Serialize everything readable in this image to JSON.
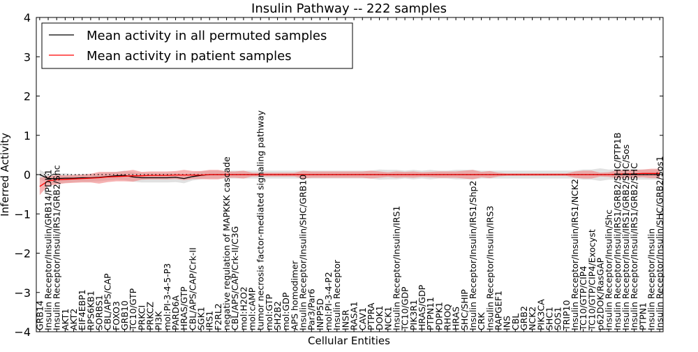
{
  "chart_data": {
    "type": "line",
    "title": "Insulin Pathway -- 222 samples",
    "xlabel": "Cellular Entities",
    "ylabel": "Inferred Activity",
    "ylim": [
      -4,
      4
    ],
    "yticks": [
      -4,
      -3,
      -2,
      -1,
      0,
      1,
      2,
      3,
      4
    ],
    "grid": false,
    "legend_position": "top-left",
    "categories": [
      "GRB14",
      "Insulin Receptor/Insulin/GRB14/PDK1",
      "Insulin Receptor/Insuli/IRS1/GRB2/Shc",
      "AKT1",
      "AKT2",
      "EIF4EBP1",
      "RPS6KB1",
      "SORBS1",
      "CBL/APS/CAP",
      "FOXO3",
      "GRB10",
      "TC10/GTP",
      "PRKCI",
      "PRKCZ",
      "PI3K",
      "mol:PI-3-4-5-P3",
      "PARD6A",
      "HRAS/GTP",
      "CBL/APS/CAP/Crk-II",
      "SGK1",
      "IRS1",
      "F2RL2",
      "negative regulation of MAPKKK cascade",
      "CBL/APS/CAP/Crk-II/C3G",
      "mol:H2O2",
      "mol:cAMP",
      "tumor necrosis factor-mediated signaling pathway",
      "mol:GTP",
      "SH2B2",
      "mol:GDP",
      "APS homodimer",
      "Insulin Receptor/Insulin/SHC/GRB10",
      "Par3/Par6",
      "INPP5D",
      "mol:PI-3-4-P2",
      "Insulin Receptor",
      "INSR",
      "RASA1",
      "CAV1",
      "PTPRA",
      "DOK1",
      "NCK1",
      "Insulin Receptor/Insulin/IRS1",
      "TC10/GDP",
      "PIK3R1",
      "HRAS/GDP",
      "PTPN11",
      "PDPK1",
      "RHOQ",
      "HRAS",
      "SHC/SHIP",
      "Insulin Receptor/Insulin/IRS1/Shp2",
      "CRK",
      "Insulin Receptor/Insulin/IRS3",
      "RAPGEF1",
      "INS",
      "CBL",
      "GRB2",
      "NCK2",
      "PIK3CA",
      "SHC1",
      "SOS1",
      "TRIP10",
      "Insulin Receptor/Insulin/IRS1/NCK2",
      "TC10/GTP/CIP4",
      "TC10/GTP/CIP4/Exocyst",
      "p62DOK/RasGAP",
      "Insulin Receptor/Insulin/Shc",
      "Insulin Receptor/Insuli/IRS1/GRB2/SHC/PTP1B",
      "Insulin Receptor/Insuli/IRS1/GRB2/SHC/Sos",
      "Insulin Receptor/Insuli/IRS1/GRB2/SHC",
      "PTPN1",
      "Insulin Receptor/Insulin",
      "Insulin Receptor/Insulin/SHC/GRB2/Sos1"
    ],
    "series": [
      {
        "name": "Mean activity in all permuted samples",
        "color": "#000000",
        "band_color": "#c8c8c8",
        "values": [
          0,
          -0.1,
          -0.1,
          -0.09,
          -0.09,
          -0.08,
          -0.08,
          -0.07,
          -0.05,
          -0.03,
          -0.02,
          -0.06,
          -0.08,
          -0.08,
          -0.08,
          -0.08,
          -0.07,
          -0.1,
          -0.05,
          -0.02,
          0,
          0,
          0,
          0,
          0,
          0,
          0,
          0,
          0,
          0,
          0,
          0,
          0,
          0,
          0,
          0,
          0,
          0,
          0,
          0,
          0,
          0,
          0,
          0,
          0,
          0,
          0,
          0,
          0,
          0,
          0,
          0,
          0,
          0,
          0,
          0,
          0,
          0,
          0,
          0,
          0,
          0,
          0,
          0,
          0,
          0,
          0,
          0,
          0,
          0,
          0,
          0,
          0,
          0
        ],
        "spread": [
          0.12,
          0.12,
          0.12,
          0.12,
          0.1,
          0.1,
          0.1,
          0.1,
          0.1,
          0.1,
          0.12,
          0.12,
          0.12,
          0.12,
          0.12,
          0.12,
          0.12,
          0.12,
          0.1,
          0.1,
          0.1,
          0.1,
          0.1,
          0.1,
          0.1,
          0.1,
          0.1,
          0.1,
          0.1,
          0.1,
          0.1,
          0.1,
          0.1,
          0.1,
          0.1,
          0.1,
          0.1,
          0.1,
          0.1,
          0.1,
          0.13,
          0.12,
          0.12,
          0.1,
          0.12,
          0.1,
          0.12,
          0.1,
          0.1,
          0.12,
          0.12,
          0.12,
          0.1,
          0.1,
          0.1,
          0.1,
          0.1,
          0.1,
          0.1,
          0.1,
          0.1,
          0.1,
          0.1,
          0.1,
          0.13,
          0.13,
          0.16,
          0.13,
          0.13,
          0.13,
          0.13,
          0.13,
          0.13,
          0.13
        ]
      },
      {
        "name": "Mean activity in patient samples",
        "color": "#ff0000",
        "band_color": "#f08080",
        "values": [
          -0.3,
          -0.16,
          -0.13,
          -0.12,
          -0.11,
          -0.1,
          -0.09,
          -0.08,
          -0.06,
          -0.05,
          -0.04,
          -0.03,
          -0.03,
          -0.02,
          -0.02,
          -0.02,
          -0.01,
          -0.01,
          -0.01,
          -0.01,
          0,
          0,
          0,
          0,
          0,
          0,
          0,
          0,
          0,
          0,
          0,
          0,
          0,
          0,
          0,
          0,
          0,
          0,
          0,
          0,
          0,
          0,
          0,
          0,
          0,
          0,
          0,
          0,
          0,
          0,
          0,
          0,
          0,
          0,
          0,
          0,
          0,
          0,
          0,
          0,
          0,
          0,
          0,
          0,
          0,
          0,
          0,
          0,
          0.01,
          0.02,
          0.02,
          0.03,
          0.03,
          0.03
        ],
        "spread": [
          0.22,
          0.12,
          0.12,
          0.1,
          0.1,
          0.1,
          0.11,
          0.15,
          0.13,
          0.12,
          0.13,
          0.15,
          0.1,
          0.1,
          0.1,
          0.1,
          0.1,
          0.13,
          0.1,
          0.1,
          0.12,
          0.12,
          0.08,
          0.08,
          0.1,
          0.05,
          0.05,
          0.05,
          0.05,
          0.05,
          0.05,
          0.1,
          0.08,
          0.08,
          0.08,
          0.08,
          0.08,
          0.08,
          0.08,
          0.1,
          0.08,
          0.06,
          0.08,
          0.07,
          0.08,
          0.06,
          0.07,
          0.08,
          0.08,
          0.08,
          0.1,
          0.12,
          0.07,
          0.09,
          0.05,
          0.03,
          0.03,
          0.03,
          0.03,
          0.03,
          0.03,
          0.03,
          0.03,
          0.08,
          0.1,
          0.1,
          0.05,
          0.06,
          0.1,
          0.1,
          0.1,
          0.1,
          0.12,
          0.12
        ]
      }
    ]
  }
}
